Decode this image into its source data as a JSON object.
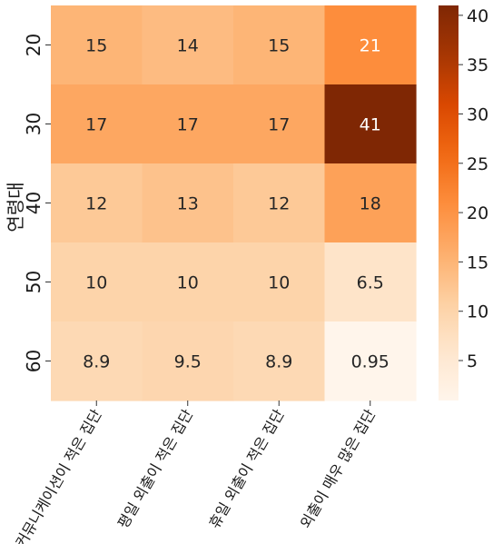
{
  "chart_data": {
    "type": "heatmap",
    "title": "",
    "xlabel": "",
    "ylabel": "연령대",
    "x_categories": [
      "커뮤니케이션이 적은 집단",
      "평일 외출이 적은 집단",
      "휴일 외출이 적은 집단",
      "외출이 매우 많은 집단"
    ],
    "y_categories": [
      "20",
      "30",
      "40",
      "50",
      "60"
    ],
    "values": [
      [
        15,
        14,
        15,
        21
      ],
      [
        17,
        17,
        17,
        41
      ],
      [
        12,
        13,
        12,
        18
      ],
      [
        10,
        10,
        10,
        6.5
      ],
      [
        8.9,
        9.5,
        8.9,
        0.95
      ]
    ],
    "cell_labels": [
      [
        "15",
        "14",
        "15",
        "21"
      ],
      [
        "17",
        "17",
        "17",
        "41"
      ],
      [
        "12",
        "13",
        "12",
        "18"
      ],
      [
        "10",
        "10",
        "10",
        "6.5"
      ],
      [
        "8.9",
        "9.5",
        "8.9",
        "0.95"
      ]
    ],
    "colormap": "Oranges",
    "colorbar": {
      "range": [
        0.95,
        41
      ],
      "ticks": [
        "5",
        "10",
        "15",
        "20",
        "25",
        "30",
        "35",
        "40"
      ]
    },
    "x_tick_rotation_deg": 60
  }
}
